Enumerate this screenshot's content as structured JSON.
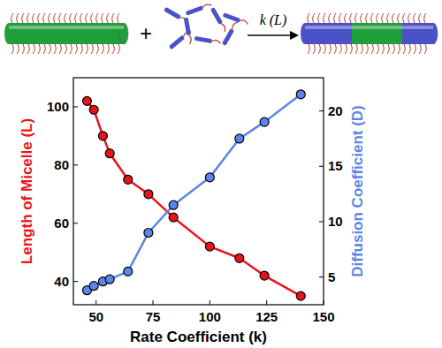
{
  "chart_data": {
    "type": "scatter",
    "annotations": [
      "+",
      "k (L)"
    ],
    "x_label": "Rate Coefficient (k)",
    "y_label": "Length of Micelle (L)",
    "y2_label": "Diffusion Coefficient (D)",
    "x": [
      46,
      49,
      53,
      56,
      64,
      73,
      84,
      100,
      113,
      124,
      140
    ],
    "xlim": [
      40,
      150
    ],
    "xticks": [
      50,
      75,
      100,
      125,
      150
    ],
    "ylim": [
      32,
      110
    ],
    "yticks": [
      40,
      60,
      80,
      100
    ],
    "y2lim": [
      2.5,
      23
    ],
    "y2ticks": [
      5,
      10,
      15,
      20
    ],
    "grid": false,
    "series": [
      {
        "color": "#e8141b",
        "marker": "circle",
        "line_style": "solid",
        "axis": "y",
        "values": [
          102,
          99,
          90,
          84,
          75,
          70,
          62,
          52,
          48,
          42,
          35
        ]
      },
      {
        "color": "#5b86e5",
        "marker": "circle",
        "line_style": "solid",
        "axis": "y2",
        "values": [
          3.8,
          4.2,
          4.6,
          4.8,
          5.5,
          9,
          11.5,
          14,
          17.5,
          19,
          21.5
        ]
      }
    ]
  }
}
